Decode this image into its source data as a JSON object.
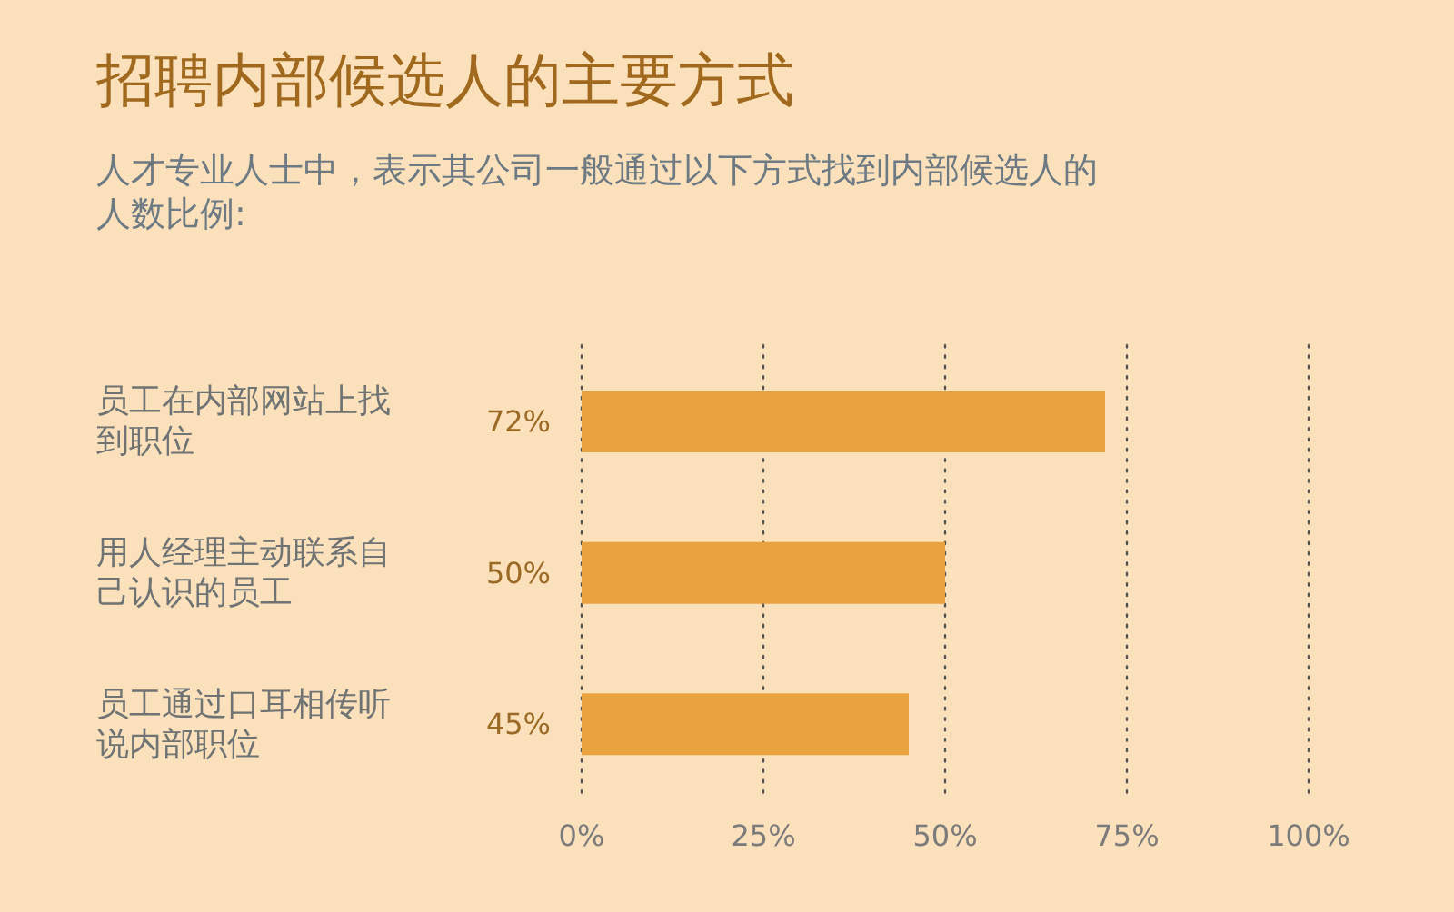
{
  "chart_data": {
    "type": "bar",
    "orientation": "horizontal",
    "title": "招聘内部候选人的主要方式",
    "subtitle": "人才专业人士中，表示其公司一般通过以下方式找到内部候选人的人数比例:",
    "categories": [
      "员工在内部网站上找到职位",
      "用人经理主动联系自己认识的员工",
      "员工通过口耳相传听说内部职位"
    ],
    "values": [
      72,
      50,
      45
    ],
    "value_labels": [
      "72%",
      "50%",
      "45%"
    ],
    "color": "#e8a33f",
    "xlim": [
      0,
      100
    ],
    "xticks": [
      {
        "value": 0,
        "label": "0%"
      },
      {
        "value": 25,
        "label": "25%"
      },
      {
        "value": 50,
        "label": "50%"
      },
      {
        "value": 75,
        "label": "75%"
      },
      {
        "value": 100,
        "label": "100%"
      }
    ],
    "grid": "x"
  }
}
